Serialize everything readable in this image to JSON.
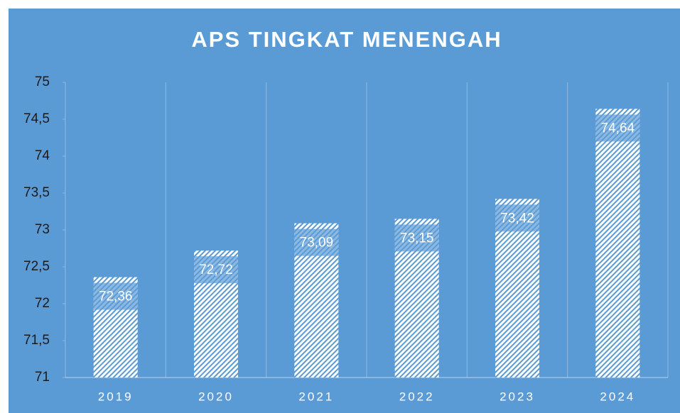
{
  "chart_data": {
    "type": "bar",
    "title": "APS TINGKAT MENENGAH",
    "categories": [
      "2019",
      "2020",
      "2021",
      "2022",
      "2023",
      "2024"
    ],
    "values": [
      72.36,
      72.72,
      73.09,
      73.15,
      73.42,
      74.64
    ],
    "value_labels": [
      "72,36",
      "72,72",
      "73,09",
      "73,15",
      "73,42",
      "74,64"
    ],
    "color": "#ffffff",
    "ylim": [
      71,
      75
    ],
    "yticks": [
      71,
      {
        "value": 71.5,
        "label": "71,5"
      },
      72,
      {
        "value": 72.5,
        "label": "72,5"
      },
      73,
      {
        "value": 73.5,
        "label": "73,5"
      },
      74,
      {
        "value": 74.5,
        "label": "74,5"
      },
      75
    ]
  }
}
